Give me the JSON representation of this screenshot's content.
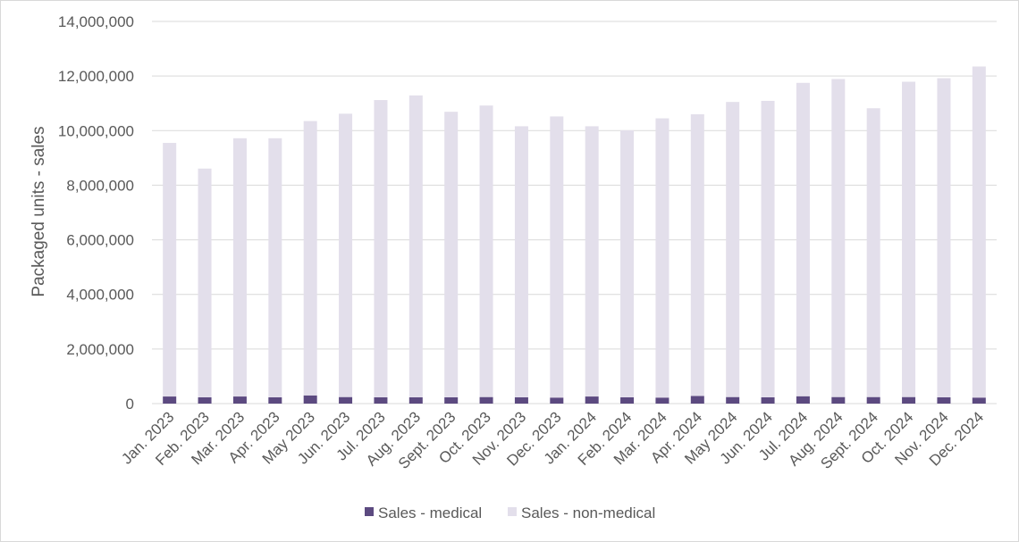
{
  "chart_data": {
    "type": "bar",
    "stacked": true,
    "ylabel": "Packaged units - sales",
    "xlabel": "",
    "ylim": [
      0,
      14000000
    ],
    "yticks": [
      0,
      2000000,
      4000000,
      6000000,
      8000000,
      10000000,
      12000000,
      14000000
    ],
    "ytick_labels": [
      "0",
      "2,000,000",
      "4,000,000",
      "6,000,000",
      "8,000,000",
      "10,000,000",
      "12,000,000",
      "14,000,000"
    ],
    "grid": true,
    "legend_position": "bottom",
    "categories": [
      "Jan. 2023",
      "Feb. 2023",
      "Mar. 2023",
      "Apr. 2023",
      "May 2023",
      "Jun. 2023",
      "Jul. 2023",
      "Aug. 2023",
      "Sept. 2023",
      "Oct. 2023",
      "Nov. 2023",
      "Dec. 2023",
      "Jan. 2024",
      "Feb. 2024",
      "Mar. 2024",
      "Apr. 2024",
      "May 2024",
      "Jun. 2024",
      "Jul. 2024",
      "Aug. 2024",
      "Sept. 2024",
      "Oct. 2024",
      "Nov. 2024",
      "Dec. 2024"
    ],
    "series": [
      {
        "name": "Sales - medical",
        "color": "#5c4a80",
        "values": [
          260000,
          230000,
          260000,
          230000,
          300000,
          240000,
          230000,
          230000,
          230000,
          240000,
          230000,
          220000,
          260000,
          230000,
          220000,
          280000,
          240000,
          230000,
          270000,
          240000,
          240000,
          240000,
          230000,
          220000
        ]
      },
      {
        "name": "Sales - non-medical",
        "color": "#e3dfeb",
        "values": [
          9290000,
          8380000,
          9460000,
          9490000,
          10050000,
          10380000,
          10890000,
          11060000,
          10460000,
          10680000,
          9930000,
          10300000,
          9900000,
          9780000,
          10230000,
          10320000,
          10810000,
          10860000,
          11480000,
          11650000,
          10580000,
          11550000,
          11690000,
          12130000
        ]
      }
    ]
  }
}
